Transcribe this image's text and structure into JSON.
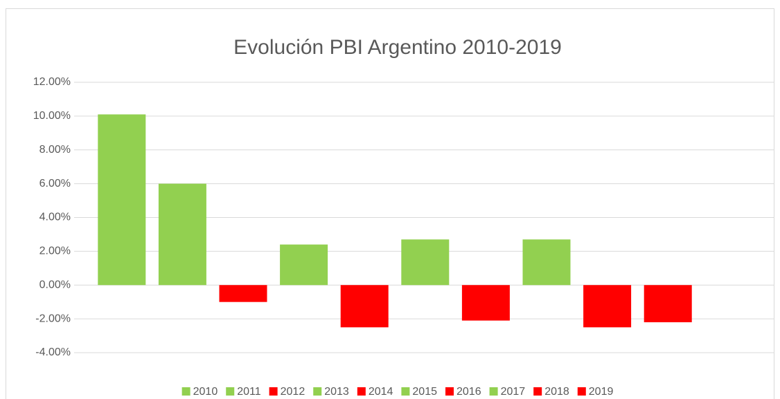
{
  "chart_data": {
    "type": "bar",
    "title": "Evolución PBI Argentino 2010-2019",
    "categories": [
      "2010",
      "2011",
      "2012",
      "2013",
      "2014",
      "2015",
      "2016",
      "2017",
      "2018",
      "2019"
    ],
    "values": [
      10.1,
      6.0,
      -1.0,
      2.4,
      -2.5,
      2.7,
      -2.1,
      2.7,
      -2.5,
      -2.2
    ],
    "colors": [
      "#92d050",
      "#92d050",
      "#ff0000",
      "#92d050",
      "#ff0000",
      "#92d050",
      "#ff0000",
      "#92d050",
      "#ff0000",
      "#ff0000"
    ],
    "ylim": [
      -4,
      12
    ],
    "yticks": [
      {
        "value": -4,
        "label": "-4.00%"
      },
      {
        "value": -2,
        "label": "-2.00%"
      },
      {
        "value": 0,
        "label": "0.00%"
      },
      {
        "value": 2,
        "label": "2.00%"
      },
      {
        "value": 4,
        "label": "4.00%"
      },
      {
        "value": 6,
        "label": "6.00%"
      },
      {
        "value": 8,
        "label": "8.00%"
      },
      {
        "value": 10,
        "label": "10.00%"
      },
      {
        "value": 12,
        "label": "12.00%"
      }
    ],
    "grid": true,
    "legend": "bottom"
  }
}
